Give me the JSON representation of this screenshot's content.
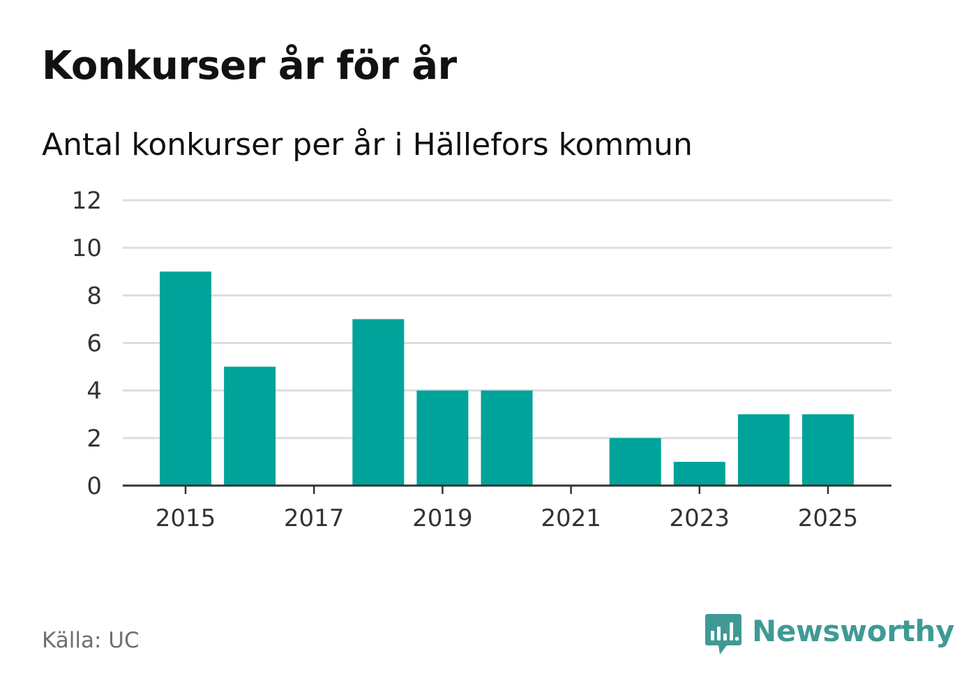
{
  "title": "Konkurser år för år",
  "subtitle": "Antal konkurser per år i Hällefors kommun",
  "source": "Källa: UC",
  "brand": {
    "name": "Newsworthy",
    "color": "#3f9a95",
    "icon": "bar-chart-speech-bubble-icon"
  },
  "colors": {
    "bar": "#00a39a",
    "grid": "#dddddd",
    "axis": "#333333"
  },
  "chart_data": {
    "type": "bar",
    "categories": [
      "2015",
      "2016",
      "2017",
      "2018",
      "2019",
      "2020",
      "2021",
      "2022",
      "2023",
      "2024",
      "2025"
    ],
    "values": [
      9,
      5,
      0,
      7,
      4,
      4,
      0,
      2,
      1,
      3,
      3
    ],
    "x_tick_labels": [
      "2015",
      "2017",
      "2019",
      "2021",
      "2023",
      "2025"
    ],
    "y_ticks": [
      0,
      2,
      4,
      6,
      8,
      10,
      12
    ],
    "ylim": [
      0,
      12
    ],
    "grid": true,
    "title": "Konkurser år för år",
    "xlabel": "",
    "ylabel": ""
  }
}
